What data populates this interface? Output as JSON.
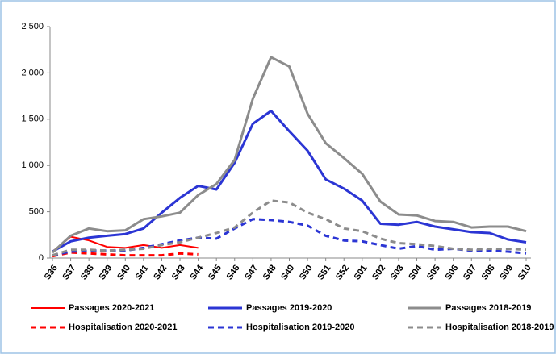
{
  "chart_data": {
    "type": "line",
    "categories": [
      "S36",
      "S37",
      "S38",
      "S39",
      "S40",
      "S41",
      "S42",
      "S43",
      "S44",
      "S45",
      "S46",
      "S47",
      "S48",
      "S49",
      "S50",
      "S51",
      "S52",
      "S01",
      "S02",
      "S03",
      "S04",
      "S05",
      "S06",
      "S07",
      "S08",
      "S09",
      "S10"
    ],
    "series": [
      {
        "name": "Passages 2020-2021",
        "color": "#ff0000",
        "dash": false,
        "values": [
          70,
          230,
          190,
          120,
          110,
          140,
          110,
          140,
          110,
          null,
          null,
          null,
          null,
          null,
          null,
          null,
          null,
          null,
          null,
          null,
          null,
          null,
          null,
          null,
          null,
          null,
          null
        ]
      },
      {
        "name": "Passages 2019-2020",
        "color": "#2b35d4",
        "dash": false,
        "values": [
          70,
          180,
          220,
          240,
          260,
          320,
          490,
          650,
          780,
          740,
          1030,
          1450,
          1590,
          1370,
          1160,
          850,
          750,
          620,
          370,
          360,
          390,
          340,
          310,
          280,
          270,
          200,
          170
        ]
      },
      {
        "name": "Passages 2018-2019",
        "color": "#8c8c8c",
        "dash": false,
        "values": [
          60,
          240,
          320,
          290,
          300,
          420,
          450,
          490,
          680,
          800,
          1060,
          1720,
          2170,
          2070,
          1560,
          1240,
          1080,
          910,
          610,
          470,
          460,
          400,
          390,
          330,
          340,
          340,
          290
        ]
      },
      {
        "name": "Hospitalisation 2020-2021",
        "color": "#ff0000",
        "dash": true,
        "values": [
          20,
          60,
          50,
          40,
          30,
          30,
          30,
          50,
          40,
          null,
          null,
          null,
          null,
          null,
          null,
          null,
          null,
          null,
          null,
          null,
          null,
          null,
          null,
          null,
          null,
          null,
          null
        ]
      },
      {
        "name": "Hospitalisation 2019-2020",
        "color": "#2b35d4",
        "dash": true,
        "values": [
          30,
          70,
          80,
          80,
          80,
          110,
          150,
          190,
          220,
          210,
          320,
          420,
          410,
          390,
          350,
          240,
          190,
          180,
          140,
          100,
          130,
          90,
          100,
          80,
          80,
          70,
          50
        ]
      },
      {
        "name": "Hospitalisation 2018-2019",
        "color": "#8c8c8c",
        "dash": true,
        "values": [
          30,
          90,
          90,
          80,
          90,
          100,
          140,
          170,
          220,
          270,
          330,
          490,
          620,
          600,
          490,
          420,
          320,
          290,
          210,
          160,
          150,
          130,
          100,
          90,
          100,
          100,
          90
        ]
      }
    ],
    "ylim": [
      0,
      2500
    ],
    "yticks": [
      0,
      500,
      {
        "value": 1000,
        "label": "1 000"
      },
      {
        "value": 1500,
        "label": "1 500"
      },
      {
        "value": 2000,
        "label": "2 000"
      },
      {
        "value": 2500,
        "label": "2 500"
      }
    ],
    "grid": false
  }
}
